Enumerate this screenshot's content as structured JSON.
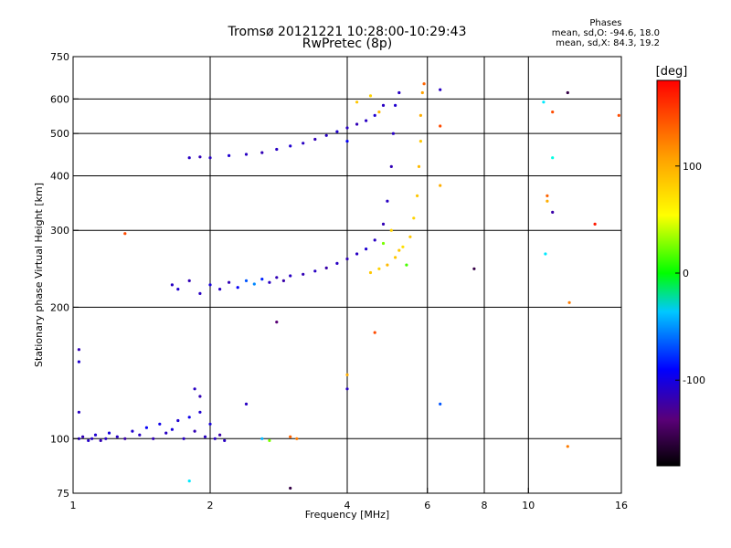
{
  "header": {
    "title": "Tromsø 20121221 10:28:00-10:29:43",
    "subtitle": "RwPretec (8p)",
    "stats_title": "Phases",
    "stats_o": "mean, sd,O: -94.6, 18.0",
    "stats_x": "mean, sd,X:  84.3, 19.2"
  },
  "chart_data": {
    "type": "scatter",
    "title": "Tromsø 20121221 10:28:00-10:29:43",
    "subtitle": "RwPretec (8p)",
    "xlabel": "Frequency [MHz]",
    "ylabel": "Stationary phase Virtual Height [km]",
    "x_scale": "log",
    "y_scale": "log",
    "xlim": [
      1,
      16
    ],
    "ylim": [
      75,
      750
    ],
    "x_ticks": [
      1,
      2,
      4,
      6,
      8,
      10,
      16
    ],
    "x_tick_labels": [
      "1",
      "2",
      "4",
      "6",
      "8",
      "10",
      "16"
    ],
    "y_ticks": [
      75,
      100,
      200,
      300,
      400,
      500,
      600,
      750
    ],
    "y_tick_labels": [
      "75",
      "100",
      "200",
      "300",
      "400",
      "500",
      "600",
      "750"
    ],
    "grid": true,
    "colorbar": {
      "label": "[deg]",
      "range": [
        -180,
        180
      ],
      "ticks": [
        100,
        0,
        -100
      ],
      "tick_labels": [
        "100",
        "0",
        "-100"
      ],
      "colors": [
        "#000000",
        "#5a0078",
        "#0000ff",
        "#00ffff",
        "#00ff00",
        "#ffff00",
        "#ff8000",
        "#ff0000"
      ]
    },
    "points": [
      {
        "x": 1.03,
        "y": 100,
        "phase": -100
      },
      {
        "x": 1.05,
        "y": 101,
        "phase": -105
      },
      {
        "x": 1.08,
        "y": 99,
        "phase": -98
      },
      {
        "x": 1.1,
        "y": 100,
        "phase": -100
      },
      {
        "x": 1.12,
        "y": 102,
        "phase": -95
      },
      {
        "x": 1.15,
        "y": 99,
        "phase": -105
      },
      {
        "x": 1.18,
        "y": 100,
        "phase": -100
      },
      {
        "x": 1.2,
        "y": 103,
        "phase": -90
      },
      {
        "x": 1.25,
        "y": 101,
        "phase": -100
      },
      {
        "x": 1.3,
        "y": 100,
        "phase": -110
      },
      {
        "x": 1.35,
        "y": 104,
        "phase": -95
      },
      {
        "x": 1.4,
        "y": 102,
        "phase": -100
      },
      {
        "x": 1.45,
        "y": 106,
        "phase": -80
      },
      {
        "x": 1.5,
        "y": 100,
        "phase": -105
      },
      {
        "x": 1.55,
        "y": 108,
        "phase": -85
      },
      {
        "x": 1.6,
        "y": 103,
        "phase": -100
      },
      {
        "x": 1.65,
        "y": 105,
        "phase": -90
      },
      {
        "x": 1.7,
        "y": 110,
        "phase": -95
      },
      {
        "x": 1.75,
        "y": 100,
        "phase": -100
      },
      {
        "x": 1.8,
        "y": 112,
        "phase": -85
      },
      {
        "x": 1.85,
        "y": 104,
        "phase": -105
      },
      {
        "x": 1.9,
        "y": 115,
        "phase": -95
      },
      {
        "x": 1.95,
        "y": 101,
        "phase": -100
      },
      {
        "x": 2.0,
        "y": 108,
        "phase": -90
      },
      {
        "x": 2.05,
        "y": 100,
        "phase": -100
      },
      {
        "x": 2.1,
        "y": 102,
        "phase": -110
      },
      {
        "x": 2.15,
        "y": 99,
        "phase": -100
      },
      {
        "x": 1.03,
        "y": 160,
        "phase": -105
      },
      {
        "x": 1.03,
        "y": 150,
        "phase": -95
      },
      {
        "x": 1.03,
        "y": 115,
        "phase": -100
      },
      {
        "x": 1.85,
        "y": 130,
        "phase": -100
      },
      {
        "x": 1.9,
        "y": 125,
        "phase": -105
      },
      {
        "x": 2.4,
        "y": 120,
        "phase": -100
      },
      {
        "x": 1.8,
        "y": 80,
        "phase": -30
      },
      {
        "x": 2.6,
        "y": 100,
        "phase": -40
      },
      {
        "x": 1.3,
        "y": 295,
        "phase": 150
      },
      {
        "x": 1.65,
        "y": 225,
        "phase": -100
      },
      {
        "x": 1.7,
        "y": 220,
        "phase": -95
      },
      {
        "x": 1.8,
        "y": 230,
        "phase": -105
      },
      {
        "x": 1.9,
        "y": 215,
        "phase": -100
      },
      {
        "x": 2.0,
        "y": 225,
        "phase": -90
      },
      {
        "x": 2.1,
        "y": 220,
        "phase": -100
      },
      {
        "x": 2.2,
        "y": 228,
        "phase": -105
      },
      {
        "x": 2.3,
        "y": 222,
        "phase": -80
      },
      {
        "x": 2.4,
        "y": 230,
        "phase": -60
      },
      {
        "x": 2.5,
        "y": 226,
        "phase": -50
      },
      {
        "x": 2.6,
        "y": 232,
        "phase": -70
      },
      {
        "x": 2.7,
        "y": 228,
        "phase": -100
      },
      {
        "x": 2.8,
        "y": 234,
        "phase": -105
      },
      {
        "x": 2.9,
        "y": 230,
        "phase": -110
      },
      {
        "x": 3.0,
        "y": 236,
        "phase": -100
      },
      {
        "x": 3.2,
        "y": 238,
        "phase": -105
      },
      {
        "x": 3.4,
        "y": 242,
        "phase": -100
      },
      {
        "x": 3.6,
        "y": 246,
        "phase": -110
      },
      {
        "x": 3.8,
        "y": 252,
        "phase": -100
      },
      {
        "x": 4.0,
        "y": 258,
        "phase": -105
      },
      {
        "x": 4.2,
        "y": 265,
        "phase": -100
      },
      {
        "x": 4.4,
        "y": 272,
        "phase": -95
      },
      {
        "x": 4.6,
        "y": 285,
        "phase": -100
      },
      {
        "x": 4.8,
        "y": 310,
        "phase": -105
      },
      {
        "x": 4.9,
        "y": 350,
        "phase": -100
      },
      {
        "x": 5.0,
        "y": 420,
        "phase": -105
      },
      {
        "x": 5.05,
        "y": 500,
        "phase": -100
      },
      {
        "x": 5.1,
        "y": 580,
        "phase": -95
      },
      {
        "x": 5.2,
        "y": 620,
        "phase": -100
      },
      {
        "x": 4.5,
        "y": 240,
        "phase": 100
      },
      {
        "x": 4.7,
        "y": 245,
        "phase": 95
      },
      {
        "x": 4.9,
        "y": 250,
        "phase": 105
      },
      {
        "x": 5.1,
        "y": 260,
        "phase": 100
      },
      {
        "x": 5.3,
        "y": 275,
        "phase": 90
      },
      {
        "x": 5.5,
        "y": 290,
        "phase": 100
      },
      {
        "x": 5.6,
        "y": 320,
        "phase": 95
      },
      {
        "x": 5.7,
        "y": 360,
        "phase": 100
      },
      {
        "x": 5.75,
        "y": 420,
        "phase": 105
      },
      {
        "x": 5.8,
        "y": 480,
        "phase": 100
      },
      {
        "x": 5.8,
        "y": 550,
        "phase": 110
      },
      {
        "x": 5.85,
        "y": 620,
        "phase": 115
      },
      {
        "x": 5.9,
        "y": 650,
        "phase": 140
      },
      {
        "x": 5.0,
        "y": 300,
        "phase": 95
      },
      {
        "x": 5.2,
        "y": 270,
        "phase": 100
      },
      {
        "x": 5.4,
        "y": 250,
        "phase": 40
      },
      {
        "x": 4.8,
        "y": 280,
        "phase": 50
      },
      {
        "x": 1.8,
        "y": 440,
        "phase": -100
      },
      {
        "x": 1.9,
        "y": 442,
        "phase": -105
      },
      {
        "x": 2.0,
        "y": 440,
        "phase": -100
      },
      {
        "x": 2.2,
        "y": 445,
        "phase": -95
      },
      {
        "x": 2.4,
        "y": 448,
        "phase": -100
      },
      {
        "x": 2.6,
        "y": 452,
        "phase": -105
      },
      {
        "x": 2.8,
        "y": 460,
        "phase": -100
      },
      {
        "x": 3.0,
        "y": 468,
        "phase": -95
      },
      {
        "x": 3.2,
        "y": 475,
        "phase": -100
      },
      {
        "x": 3.4,
        "y": 485,
        "phase": -105
      },
      {
        "x": 3.6,
        "y": 495,
        "phase": -100
      },
      {
        "x": 3.8,
        "y": 505,
        "phase": -95
      },
      {
        "x": 4.0,
        "y": 515,
        "phase": -100
      },
      {
        "x": 4.2,
        "y": 525,
        "phase": -105
      },
      {
        "x": 4.4,
        "y": 535,
        "phase": -100
      },
      {
        "x": 4.6,
        "y": 550,
        "phase": -95
      },
      {
        "x": 4.8,
        "y": 580,
        "phase": -100
      },
      {
        "x": 4.2,
        "y": 590,
        "phase": 100
      },
      {
        "x": 4.5,
        "y": 610,
        "phase": 95
      },
      {
        "x": 4.7,
        "y": 560,
        "phase": 105
      },
      {
        "x": 4.0,
        "y": 480,
        "phase": -80
      },
      {
        "x": 6.4,
        "y": 630,
        "phase": -100
      },
      {
        "x": 6.4,
        "y": 520,
        "phase": 150
      },
      {
        "x": 6.4,
        "y": 380,
        "phase": 110
      },
      {
        "x": 6.4,
        "y": 120,
        "phase": -60
      },
      {
        "x": 7.6,
        "y": 245,
        "phase": -150
      },
      {
        "x": 2.8,
        "y": 185,
        "phase": -130
      },
      {
        "x": 4.0,
        "y": 140,
        "phase": 110
      },
      {
        "x": 4.0,
        "y": 130,
        "phase": -100
      },
      {
        "x": 4.6,
        "y": 175,
        "phase": 150
      },
      {
        "x": 10.8,
        "y": 590,
        "phase": -30
      },
      {
        "x": 11.3,
        "y": 560,
        "phase": 150
      },
      {
        "x": 11.3,
        "y": 440,
        "phase": -20
      },
      {
        "x": 11.0,
        "y": 360,
        "phase": 140
      },
      {
        "x": 11.0,
        "y": 350,
        "phase": 110
      },
      {
        "x": 11.3,
        "y": 330,
        "phase": -110
      },
      {
        "x": 10.9,
        "y": 265,
        "phase": -30
      },
      {
        "x": 12.2,
        "y": 620,
        "phase": -150
      },
      {
        "x": 14.0,
        "y": 310,
        "phase": 170
      },
      {
        "x": 15.8,
        "y": 550,
        "phase": 150
      },
      {
        "x": 12.3,
        "y": 205,
        "phase": 130
      },
      {
        "x": 12.2,
        "y": 96,
        "phase": 130
      },
      {
        "x": 3.0,
        "y": 101,
        "phase": 140
      },
      {
        "x": 3.1,
        "y": 100,
        "phase": 130
      },
      {
        "x": 2.7,
        "y": 99,
        "phase": 50
      },
      {
        "x": 3.0,
        "y": 77,
        "phase": -150
      }
    ]
  }
}
